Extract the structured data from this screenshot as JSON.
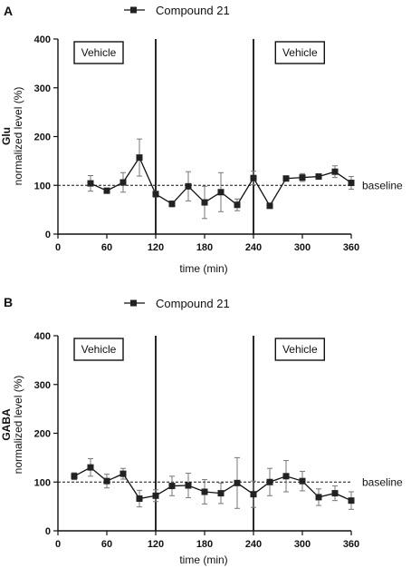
{
  "chart_data": [
    {
      "panel": "A",
      "type": "line",
      "analyte": "Glu",
      "ylabel": "normalized level (%)",
      "xlabel": "time (min)",
      "xlim": [
        0,
        360
      ],
      "ylim": [
        0,
        400
      ],
      "xticks": [
        0,
        60,
        120,
        180,
        240,
        300,
        360
      ],
      "yticks": [
        0,
        100,
        200,
        300,
        400
      ],
      "legend": "Compound 21",
      "baseline": {
        "value": 100,
        "label": "baseline"
      },
      "vlines": [
        120,
        240
      ],
      "condition_boxes": [
        {
          "label": "Vehicle",
          "position": "top-left"
        },
        {
          "label": "Vehicle",
          "position": "top-right"
        }
      ],
      "series": [
        {
          "name": "Compound 21",
          "points": [
            {
              "x": 40,
              "y": 104,
              "err": 16
            },
            {
              "x": 60,
              "y": 89,
              "err": 5
            },
            {
              "x": 80,
              "y": 106,
              "err": 20
            },
            {
              "x": 100,
              "y": 157,
              "err": 38
            },
            {
              "x": 120,
              "y": 82,
              "err": 6
            },
            {
              "x": 140,
              "y": 62,
              "err": 6
            },
            {
              "x": 160,
              "y": 98,
              "err": 30
            },
            {
              "x": 180,
              "y": 65,
              "err": 33
            },
            {
              "x": 200,
              "y": 86,
              "err": 40
            },
            {
              "x": 220,
              "y": 60,
              "err": 12
            },
            {
              "x": 240,
              "y": 115,
              "err": 14
            },
            {
              "x": 260,
              "y": 58,
              "err": 4
            },
            {
              "x": 280,
              "y": 114,
              "err": 4
            },
            {
              "x": 300,
              "y": 116,
              "err": 8
            },
            {
              "x": 320,
              "y": 118,
              "err": 5
            },
            {
              "x": 340,
              "y": 128,
              "err": 12
            },
            {
              "x": 360,
              "y": 105,
              "err": 13
            }
          ]
        }
      ]
    },
    {
      "panel": "B",
      "type": "line",
      "analyte": "GABA",
      "ylabel": "normalized level (%)",
      "xlabel": "time (min)",
      "xlim": [
        0,
        360
      ],
      "ylim": [
        0,
        400
      ],
      "xticks": [
        0,
        60,
        120,
        180,
        240,
        300,
        360
      ],
      "yticks": [
        0,
        100,
        200,
        300,
        400
      ],
      "legend": "Compound 21",
      "baseline": {
        "value": 100,
        "label": "baseline"
      },
      "vlines": [
        120,
        240
      ],
      "condition_boxes": [
        {
          "label": "Vehicle",
          "position": "top-left"
        },
        {
          "label": "Vehicle",
          "position": "top-right"
        }
      ],
      "series": [
        {
          "name": "Compound 21",
          "points": [
            {
              "x": 20,
              "y": 112,
              "err": 7
            },
            {
              "x": 40,
              "y": 130,
              "err": 18
            },
            {
              "x": 60,
              "y": 102,
              "err": 14
            },
            {
              "x": 80,
              "y": 117,
              "err": 11
            },
            {
              "x": 100,
              "y": 66,
              "err": 17
            },
            {
              "x": 120,
              "y": 72,
              "err": 12
            },
            {
              "x": 140,
              "y": 92,
              "err": 20
            },
            {
              "x": 160,
              "y": 93,
              "err": 25
            },
            {
              "x": 180,
              "y": 80,
              "err": 25
            },
            {
              "x": 200,
              "y": 77,
              "err": 21
            },
            {
              "x": 220,
              "y": 98,
              "err": 52
            },
            {
              "x": 240,
              "y": 75,
              "err": 27
            },
            {
              "x": 260,
              "y": 100,
              "err": 28
            },
            {
              "x": 280,
              "y": 112,
              "err": 32
            },
            {
              "x": 300,
              "y": 102,
              "err": 20
            },
            {
              "x": 320,
              "y": 69,
              "err": 17
            },
            {
              "x": 340,
              "y": 77,
              "err": 15
            },
            {
              "x": 360,
              "y": 62,
              "err": 18
            }
          ]
        }
      ]
    }
  ]
}
